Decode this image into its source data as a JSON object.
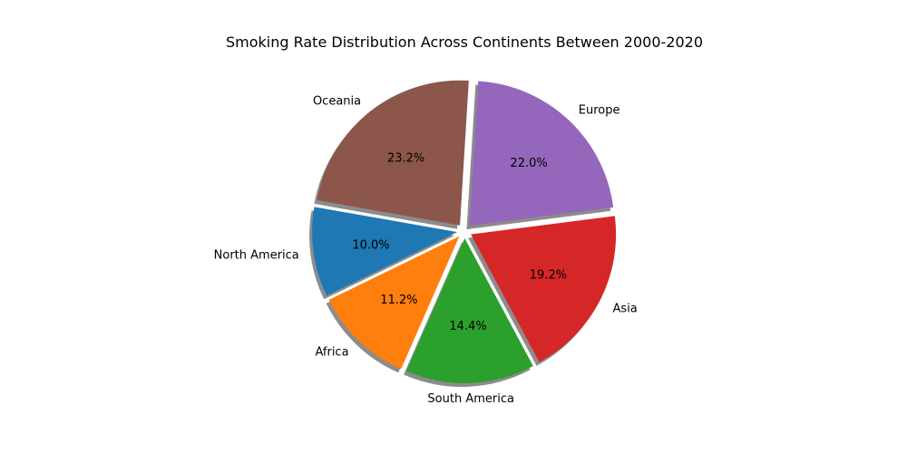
{
  "chart_data": {
    "type": "pie",
    "title": "Smoking Rate Distribution Across Continents Between 2000-2020",
    "start_angle_deg": 170,
    "shadow": true,
    "slices": [
      {
        "label": "North America",
        "value": 10.0,
        "pct_label": "10.0%",
        "color": "#1f77b4"
      },
      {
        "label": "Africa",
        "value": 11.2,
        "pct_label": "11.2%",
        "color": "#ff7f0e"
      },
      {
        "label": "South America",
        "value": 14.4,
        "pct_label": "14.4%",
        "color": "#2ca02c"
      },
      {
        "label": "Asia",
        "value": 19.2,
        "pct_label": "19.2%",
        "color": "#d62728"
      },
      {
        "label": "Europe",
        "value": 22.0,
        "pct_label": "22.0%",
        "color": "#9467bd"
      },
      {
        "label": "Oceania",
        "value": 23.2,
        "pct_label": "23.2%",
        "color": "#8c564b"
      }
    ]
  }
}
